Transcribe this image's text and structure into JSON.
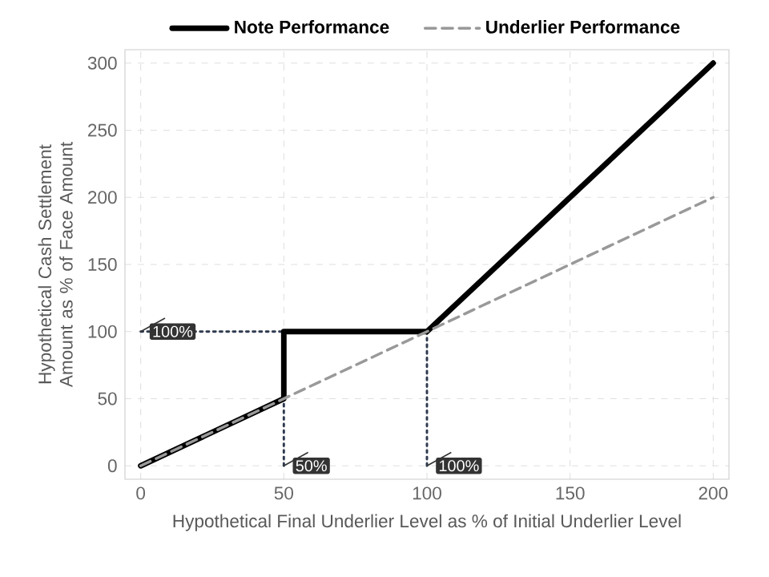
{
  "chart_data": {
    "type": "line",
    "xlabel": "Hypothetical Final Underlier Level as % of Initial Underlier Level",
    "ylabel": "Hypothetical Cash Settlement Amount as % of Face Amount",
    "xlim": [
      -5.5,
      205.5
    ],
    "ylim": [
      -10,
      310
    ],
    "xticks": [
      0,
      50,
      100,
      150,
      200
    ],
    "yticks": [
      0,
      50,
      100,
      150,
      200,
      250,
      300
    ],
    "grid": true,
    "legend": "top",
    "marker": "none",
    "series": [
      {
        "name": "Note Performance",
        "color": "#000000",
        "line_style": "solid",
        "x": [
          0,
          50,
          50,
          100,
          200
        ],
        "values": [
          0,
          50,
          100,
          100,
          300
        ]
      },
      {
        "name": "Underlier Performance",
        "color": "#999999",
        "line_style": "dashed",
        "x": [
          0,
          200
        ],
        "values": [
          0,
          200
        ]
      },
      {
        "color": "#2f3a4f",
        "line_style": "dotted",
        "x": [
          0,
          50
        ],
        "values": [
          100,
          100
        ]
      },
      {
        "color": "#2f3a4f",
        "line_style": "dotted",
        "x": [
          50,
          50
        ],
        "values": [
          0,
          50
        ]
      },
      {
        "color": "#2f3a4f",
        "line_style": "dotted",
        "x": [
          100,
          100
        ],
        "values": [
          0,
          100
        ]
      }
    ],
    "annotations": [
      {
        "text": "100%",
        "x": 0,
        "y": 100
      },
      {
        "text": "50%",
        "x": 50,
        "y": 0
      },
      {
        "text": "100%",
        "x": 100,
        "y": 0
      }
    ]
  }
}
